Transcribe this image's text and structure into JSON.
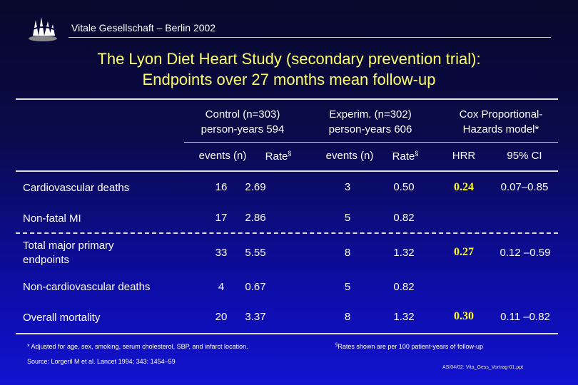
{
  "header": {
    "org": "Vitale Gesellschaft – Berlin 2002",
    "title_line1": "The Lyon Diet Heart Study (secondary prevention trial):",
    "title_line2": "Endpoints over 27 months mean follow-up"
  },
  "table": {
    "groups": [
      {
        "line1": "Control (n=303)",
        "line2": "person-years 594"
      },
      {
        "line1": "Experim. (n=302)",
        "line2": "person-years 606"
      },
      {
        "line1": "Cox Proportional-",
        "line2": "Hazards model*"
      }
    ],
    "subheaders": {
      "events": "events (n)",
      "rate": "Rate",
      "rate_mark": "§",
      "hrr": "HRR",
      "ci": "95% CI"
    },
    "rows": [
      {
        "label": "Cardiovascular deaths",
        "c_events": "16",
        "c_rate": "2.69",
        "e_events": "3",
        "e_rate": "0.50",
        "hrr": "0.24",
        "ci": "0.07–0.85"
      },
      {
        "label": "Non-fatal MI",
        "c_events": "17",
        "c_rate": "2.86",
        "e_events": "5",
        "e_rate": "0.82",
        "hrr": "",
        "ci": ""
      },
      {
        "label_line1": "Total major primary",
        "label_line2": "endpoints",
        "c_events": "33",
        "c_rate": "5.55",
        "e_events": "8",
        "e_rate": "1.32",
        "hrr": "0.27",
        "ci": "0.12 –0.59"
      },
      {
        "label": "Non-cardiovascular deaths",
        "c_events": "4",
        "c_rate": "0.67",
        "e_events": "5",
        "e_rate": "0.82",
        "hrr": "",
        "ci": ""
      },
      {
        "label": "Overall mortality",
        "c_events": "20",
        "c_rate": "3.37",
        "e_events": "8",
        "e_rate": "1.32",
        "hrr": "0.30",
        "ci": "0.11 –0.82"
      }
    ]
  },
  "footnotes": {
    "adjusted": "* Adjusted for age, sex, smoking, serum cholesterol, SBP, and infarct location.",
    "rates_mark": "§",
    "rates": "Rates shown are per 100 patient-years of follow-up",
    "source": "Source: Lorgeril M et al. Lancet 1994; 343: 1454–59",
    "slide_id": "AS/04/02: Vita_Gess_Vortrag-01.ppt"
  },
  "colors": {
    "title": "#ffff66",
    "highlight": "#ffff00",
    "background": "#0d0da8"
  }
}
